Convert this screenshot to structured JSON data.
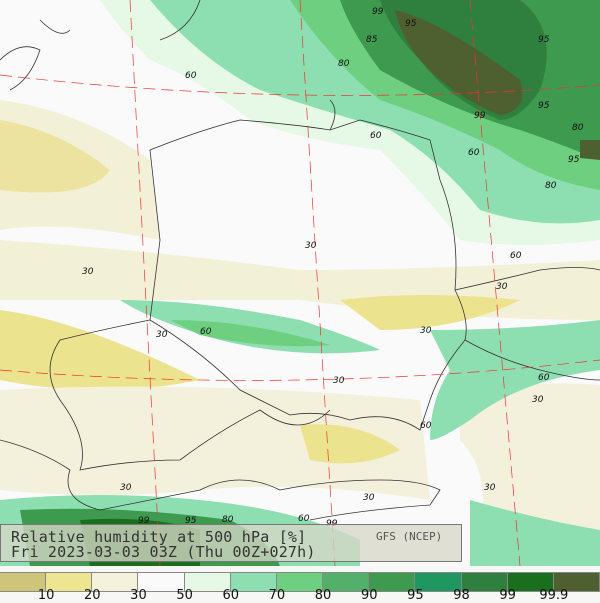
{
  "title": {
    "line1": "Relative humidity at 500 hPa [%]",
    "line2": "Fri 2023-03-03 03Z (Thu 00Z+027h)",
    "source": "GFS (NCEP)"
  },
  "legend": {
    "colors": [
      "#cfc57a",
      "#ede58f",
      "#f5f2dc",
      "#fafafa",
      "#e6f8e6",
      "#8ddfb1",
      "#6ecf80",
      "#52b06a",
      "#3d9a4f",
      "#1e9860",
      "#2f7f3e",
      "#1a6f1f",
      "#4f6030"
    ],
    "ticks": [
      "10",
      "20",
      "30",
      "50",
      "60",
      "70",
      "80",
      "90",
      "95",
      "98",
      "99",
      "99.9"
    ]
  },
  "contour_labels": [
    "99",
    "95",
    "95",
    "85",
    "80",
    "60",
    "60",
    "99",
    "95",
    "80",
    "95",
    "80",
    "60",
    "60",
    "30",
    "30",
    "60",
    "30",
    "30",
    "60",
    "30",
    "60",
    "30",
    "30",
    "30",
    "30",
    "99",
    "95",
    "80",
    "60",
    "99",
    "30"
  ]
}
